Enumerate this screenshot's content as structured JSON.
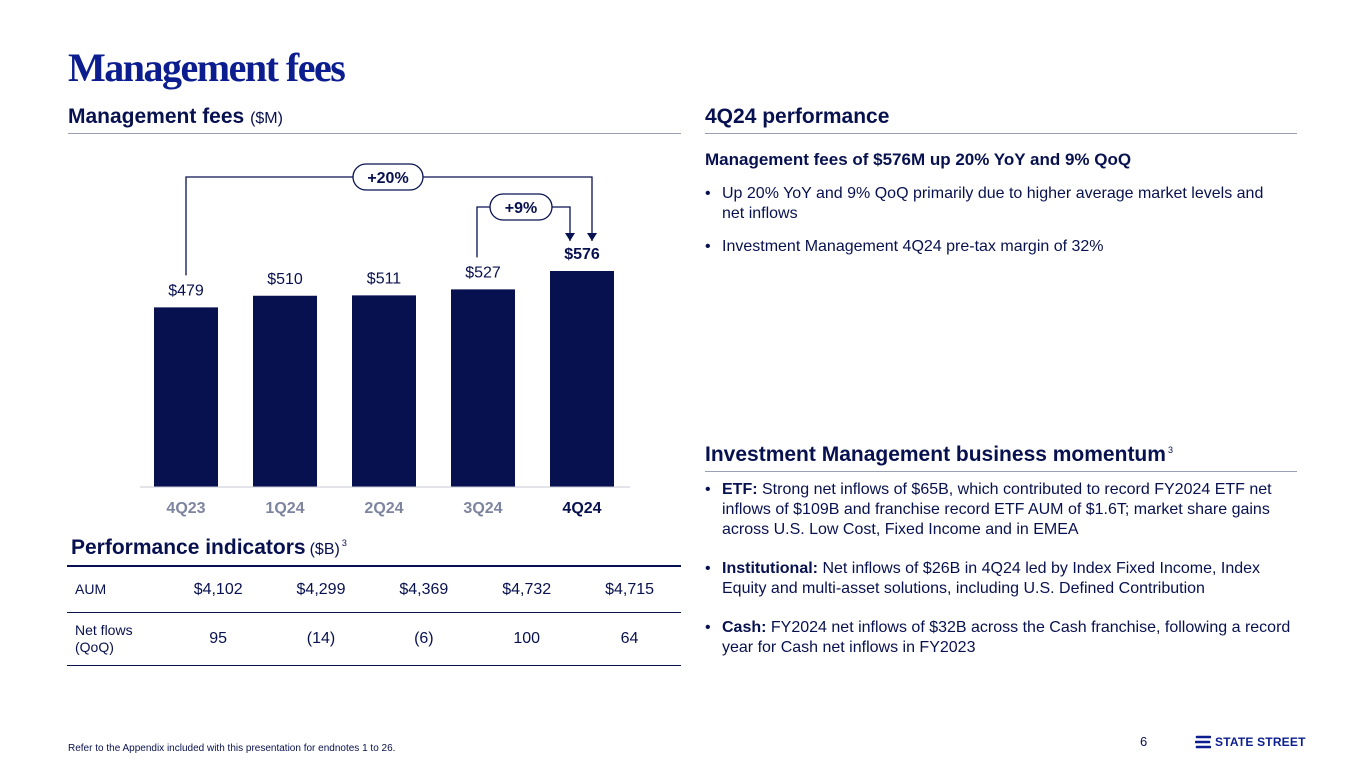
{
  "page": {
    "title": "Management fees",
    "page_number": "6",
    "footnote": "Refer to the Appendix included with this presentation for endnotes 1 to 26."
  },
  "brand": {
    "name": "STATE STREET",
    "primary_color": "#08114f",
    "accent_color": "#0b1d8f"
  },
  "left": {
    "chart_heading": "Management fees",
    "chart_unit": "($M)",
    "indicators_heading": "Performance indicators",
    "indicators_unit": "($B)",
    "indicators_sup": "3"
  },
  "chart_data": {
    "type": "bar",
    "title": "Management fees ($M)",
    "categories": [
      "4Q23",
      "1Q24",
      "2Q24",
      "3Q24",
      "4Q24"
    ],
    "values": [
      479,
      510,
      511,
      527,
      576
    ],
    "value_labels": [
      "$479",
      "$510",
      "$511",
      "$527",
      "$576"
    ],
    "highlight_index": 4,
    "ylim": [
      0,
      600
    ],
    "xlabel": "",
    "ylabel": "",
    "annotations": [
      {
        "label": "+20%",
        "from": "4Q23",
        "to": "4Q24"
      },
      {
        "label": "+9%",
        "from": "3Q24",
        "to": "4Q24"
      }
    ]
  },
  "indicators": {
    "rows": [
      {
        "label": "AUM",
        "values": [
          "$4,102",
          "$4,299",
          "$4,369",
          "$4,732",
          "$4,715"
        ]
      },
      {
        "label_line1": "Net flows",
        "label_line2": "(QoQ)",
        "values": [
          "95",
          "(14)",
          "(6)",
          "100",
          "64"
        ]
      }
    ]
  },
  "right": {
    "perf_heading": "4Q24 performance",
    "perf_subheading": "Management fees of $576M up 20% YoY and 9% QoQ",
    "perf_bullets": [
      "Up 20% YoY and 9% QoQ primarily due to higher average market levels and net inflows",
      "Investment Management 4Q24 pre-tax margin of 32%"
    ],
    "momentum_heading": "Investment Management business momentum",
    "momentum_sup": "3",
    "momentum_bullets": [
      {
        "label": "ETF:",
        "text": "Strong net inflows of $65B, which contributed to record FY2024 ETF net inflows of $109B and franchise record ETF AUM of $1.6T; market share gains across U.S. Low Cost, Fixed Income and in EMEA"
      },
      {
        "label": "Institutional:",
        "text": "Net inflows of $26B in 4Q24 led by Index Fixed Income, Index Equity and multi-asset solutions, including U.S. Defined Contribution"
      },
      {
        "label": "Cash:",
        "text": "FY2024 net inflows of $32B across the Cash franchise, following a record year for Cash net inflows in FY2023"
      }
    ]
  }
}
